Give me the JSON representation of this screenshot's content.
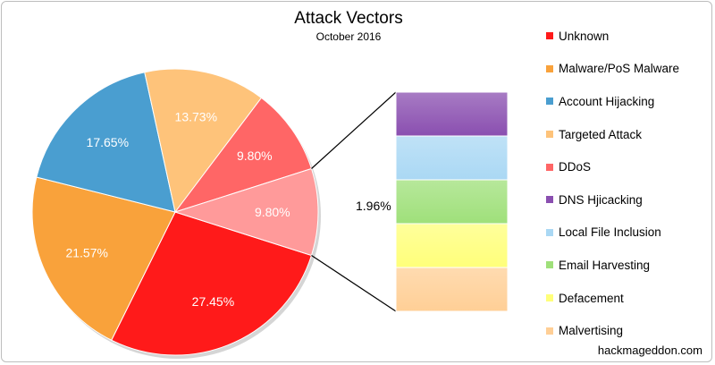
{
  "chart_data": {
    "type": "pie",
    "title": "Attack Vectors",
    "subtitle": "October 2016",
    "source": "hackmageddon.com",
    "categories": [
      "Unknown",
      "Malware/PoS Malware",
      "Account Hijacking",
      "Targeted Attack",
      "DDoS",
      "DNS Hjicacking",
      "Local File Inclusion",
      "Email Harvesting",
      "Defacement",
      "Malvertising"
    ],
    "values": [
      27.45,
      21.57,
      17.65,
      13.73,
      9.8,
      1.96,
      1.96,
      1.96,
      1.96,
      1.96
    ],
    "colors": [
      "#ff1a1a",
      "#f9a23b",
      "#4a9ed0",
      "#fec37a",
      "#ff6666",
      "#8a4fb0",
      "#aad8f4",
      "#9fe07a",
      "#ffff7a",
      "#ffcf96"
    ],
    "pie_labels": [
      "27.45%",
      "21.57%",
      "17.65%",
      "13.73%",
      "9.80%",
      "9.80%"
    ],
    "pie_label_colors": [
      "#ffffff",
      "#ffffff",
      "#ffffff",
      "#ffffff",
      "#ffffff",
      "#ffffff"
    ],
    "other_slice_color": "#ff9a9a",
    "breakdown_label": "1.96%",
    "legend_position": "right"
  }
}
